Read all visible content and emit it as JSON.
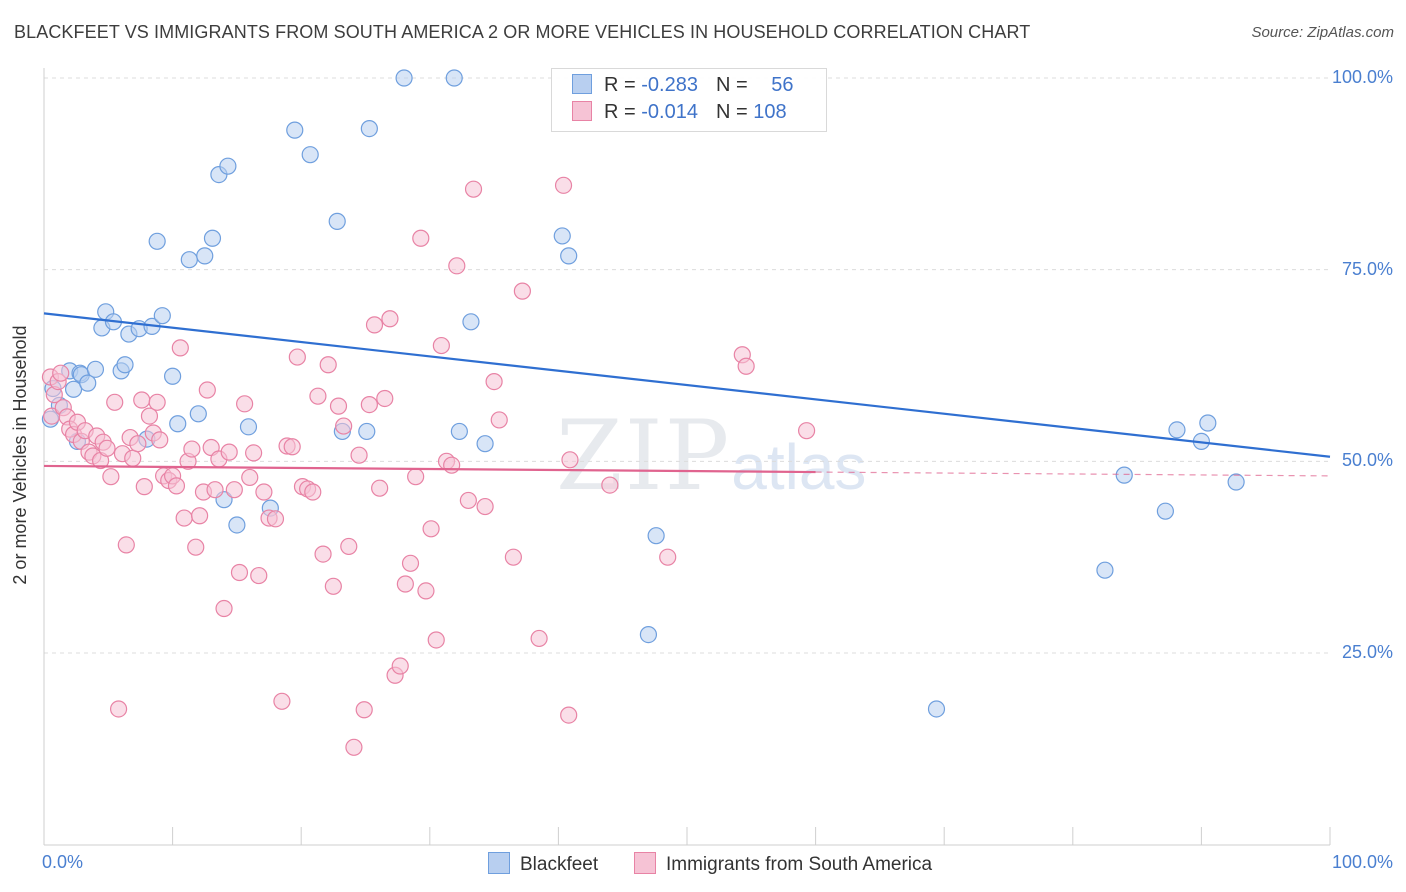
{
  "header": {
    "title": "BLACKFEET VS IMMIGRANTS FROM SOUTH AMERICA 2 OR MORE VEHICLES IN HOUSEHOLD CORRELATION CHART",
    "source": "Source: ZipAtlas.com"
  },
  "watermark": {
    "zip": "ZIP",
    "atlas": "atlas"
  },
  "legend": {
    "blackfeet": {
      "r_label": "R = ",
      "r_value": "-0.283",
      "n_label": "N = ",
      "n_value": "56"
    },
    "immigrants": {
      "r_label": "R = ",
      "r_value": "-0.014",
      "n_label": "N = ",
      "n_value": "108"
    }
  },
  "bottom_legend": {
    "blackfeet": "Blackfeet",
    "immigrants": "Immigrants from South America"
  },
  "colors": {
    "blue": "#6f9fde",
    "blue_fill": "#b8cff0",
    "pink": "#e883a5",
    "pink_fill": "#f6c3d5",
    "blue_line": "#2f6fd1",
    "pink_line": "#e0648f",
    "grid": "#dcdcdc",
    "tick_text": "#4a7fd0"
  },
  "chart_data": {
    "type": "scatter",
    "title": "BLACKFEET VS IMMIGRANTS FROM SOUTH AMERICA 2 OR MORE VEHICLES IN HOUSEHOLD CORRELATION CHART",
    "xlabel": "",
    "ylabel": "2 or more Vehicles in Household",
    "xlim": [
      0,
      100
    ],
    "ylim": [
      0,
      105
    ],
    "x_ticks": [
      "0.0%",
      "100.0%"
    ],
    "y_ticks": [
      {
        "value": 25,
        "label": "25.0%"
      },
      {
        "value": 50,
        "label": "50.0%"
      },
      {
        "value": 75,
        "label": "75.0%"
      },
      {
        "value": 100,
        "label": "100.0%"
      }
    ],
    "grid": true,
    "legend_position": "top-center",
    "series": [
      {
        "name": "Blackfeet",
        "color": "#6f9fde",
        "r": -0.283,
        "n": 56,
        "trend": {
          "x": [
            0,
            100
          ],
          "y": [
            69.3,
            50.6
          ]
        },
        "points": [
          [
            0.5,
            55.5
          ],
          [
            0.7,
            59.5
          ],
          [
            1.2,
            57.3
          ],
          [
            2.0,
            61.8
          ],
          [
            2.3,
            59.4
          ],
          [
            2.6,
            52.6
          ],
          [
            2.8,
            61.5
          ],
          [
            2.9,
            61.3
          ],
          [
            3.4,
            60.2
          ],
          [
            4.0,
            62.0
          ],
          [
            4.5,
            67.4
          ],
          [
            4.8,
            69.5
          ],
          [
            5.4,
            68.2
          ],
          [
            6.0,
            61.8
          ],
          [
            6.3,
            62.6
          ],
          [
            6.6,
            66.6
          ],
          [
            7.4,
            67.3
          ],
          [
            8.0,
            52.9
          ],
          [
            8.4,
            67.6
          ],
          [
            8.8,
            78.7
          ],
          [
            9.2,
            69.0
          ],
          [
            10.0,
            61.1
          ],
          [
            10.4,
            54.9
          ],
          [
            11.3,
            76.3
          ],
          [
            12.0,
            56.2
          ],
          [
            12.5,
            76.8
          ],
          [
            13.1,
            79.1
          ],
          [
            13.6,
            87.4
          ],
          [
            14.0,
            45.0
          ],
          [
            14.3,
            88.5
          ],
          [
            15.0,
            41.7
          ],
          [
            15.9,
            54.5
          ],
          [
            17.6,
            43.9
          ],
          [
            19.5,
            93.2
          ],
          [
            20.7,
            90.0
          ],
          [
            22.8,
            81.3
          ],
          [
            23.2,
            53.9
          ],
          [
            25.1,
            53.9
          ],
          [
            25.3,
            93.4
          ],
          [
            28.0,
            100.0
          ],
          [
            31.9,
            100.0
          ],
          [
            32.3,
            53.9
          ],
          [
            33.2,
            68.2
          ],
          [
            34.3,
            52.3
          ],
          [
            40.3,
            79.4
          ],
          [
            40.8,
            76.8
          ],
          [
            47.0,
            27.4
          ],
          [
            47.6,
            40.3
          ],
          [
            69.4,
            17.7
          ],
          [
            82.5,
            35.8
          ],
          [
            84.0,
            48.2
          ],
          [
            87.2,
            43.5
          ],
          [
            88.1,
            54.1
          ],
          [
            90.0,
            52.6
          ],
          [
            90.5,
            55.0
          ],
          [
            92.7,
            47.3
          ]
        ]
      },
      {
        "name": "Immigrants from South America",
        "color": "#e883a5",
        "r": -0.014,
        "n": 108,
        "trend": {
          "x": [
            0,
            60
          ],
          "y": [
            49.4,
            48.6
          ]
        },
        "trend_dashed": {
          "x": [
            60,
            100
          ],
          "y": [
            48.6,
            48.1
          ]
        },
        "points": [
          [
            0.5,
            61.0
          ],
          [
            0.6,
            55.9
          ],
          [
            0.8,
            58.7
          ],
          [
            1.1,
            60.4
          ],
          [
            1.3,
            61.5
          ],
          [
            1.5,
            57.0
          ],
          [
            1.8,
            55.8
          ],
          [
            2.0,
            54.2
          ],
          [
            2.3,
            53.5
          ],
          [
            2.6,
            55.1
          ],
          [
            2.9,
            52.6
          ],
          [
            3.2,
            54.0
          ],
          [
            3.5,
            51.2
          ],
          [
            3.8,
            50.7
          ],
          [
            4.1,
            53.3
          ],
          [
            4.4,
            50.1
          ],
          [
            4.6,
            52.5
          ],
          [
            4.9,
            51.7
          ],
          [
            5.2,
            48.0
          ],
          [
            5.5,
            57.7
          ],
          [
            5.8,
            17.7
          ],
          [
            6.1,
            51.0
          ],
          [
            6.4,
            39.1
          ],
          [
            6.7,
            53.1
          ],
          [
            6.9,
            50.4
          ],
          [
            7.3,
            52.3
          ],
          [
            7.6,
            58.0
          ],
          [
            7.8,
            46.7
          ],
          [
            8.2,
            55.9
          ],
          [
            8.5,
            53.7
          ],
          [
            8.8,
            57.7
          ],
          [
            9.0,
            52.8
          ],
          [
            9.3,
            48.1
          ],
          [
            9.7,
            47.5
          ],
          [
            10.0,
            48.1
          ],
          [
            10.3,
            46.8
          ],
          [
            10.6,
            64.8
          ],
          [
            10.9,
            42.6
          ],
          [
            11.2,
            50.0
          ],
          [
            11.5,
            51.6
          ],
          [
            11.8,
            38.8
          ],
          [
            12.1,
            42.9
          ],
          [
            12.4,
            46.0
          ],
          [
            12.7,
            59.3
          ],
          [
            13.0,
            51.8
          ],
          [
            13.3,
            46.3
          ],
          [
            13.6,
            50.3
          ],
          [
            14.0,
            30.8
          ],
          [
            14.4,
            51.2
          ],
          [
            14.8,
            46.3
          ],
          [
            15.2,
            35.5
          ],
          [
            15.6,
            57.5
          ],
          [
            16.0,
            47.9
          ],
          [
            16.3,
            51.1
          ],
          [
            16.7,
            35.1
          ],
          [
            17.1,
            46.0
          ],
          [
            17.5,
            42.6
          ],
          [
            18.0,
            42.5
          ],
          [
            18.5,
            18.7
          ],
          [
            18.9,
            52.0
          ],
          [
            19.3,
            51.9
          ],
          [
            19.7,
            63.6
          ],
          [
            20.1,
            46.7
          ],
          [
            20.5,
            46.4
          ],
          [
            20.9,
            46.0
          ],
          [
            21.3,
            58.5
          ],
          [
            21.7,
            37.9
          ],
          [
            22.1,
            62.6
          ],
          [
            22.5,
            33.7
          ],
          [
            22.9,
            57.2
          ],
          [
            23.3,
            54.6
          ],
          [
            23.7,
            38.9
          ],
          [
            24.1,
            12.7
          ],
          [
            24.5,
            50.8
          ],
          [
            24.9,
            17.6
          ],
          [
            25.3,
            57.4
          ],
          [
            25.7,
            67.8
          ],
          [
            26.1,
            46.5
          ],
          [
            26.5,
            58.2
          ],
          [
            26.9,
            68.6
          ],
          [
            27.3,
            22.1
          ],
          [
            27.7,
            23.3
          ],
          [
            28.1,
            34.0
          ],
          [
            28.5,
            36.7
          ],
          [
            28.9,
            48.0
          ],
          [
            29.3,
            79.1
          ],
          [
            29.7,
            33.1
          ],
          [
            30.1,
            41.2
          ],
          [
            30.5,
            26.7
          ],
          [
            30.9,
            65.1
          ],
          [
            31.3,
            50.0
          ],
          [
            31.7,
            49.5
          ],
          [
            32.1,
            75.5
          ],
          [
            33.0,
            44.9
          ],
          [
            33.4,
            85.5
          ],
          [
            34.3,
            44.1
          ],
          [
            35.0,
            60.4
          ],
          [
            35.4,
            55.4
          ],
          [
            36.5,
            37.5
          ],
          [
            37.2,
            72.2
          ],
          [
            38.5,
            26.9
          ],
          [
            40.4,
            86.0
          ],
          [
            40.8,
            16.9
          ],
          [
            40.9,
            50.2
          ],
          [
            44.0,
            46.9
          ],
          [
            48.5,
            37.5
          ],
          [
            54.3,
            63.9
          ],
          [
            54.6,
            62.4
          ],
          [
            59.3,
            54.0
          ]
        ]
      }
    ]
  }
}
